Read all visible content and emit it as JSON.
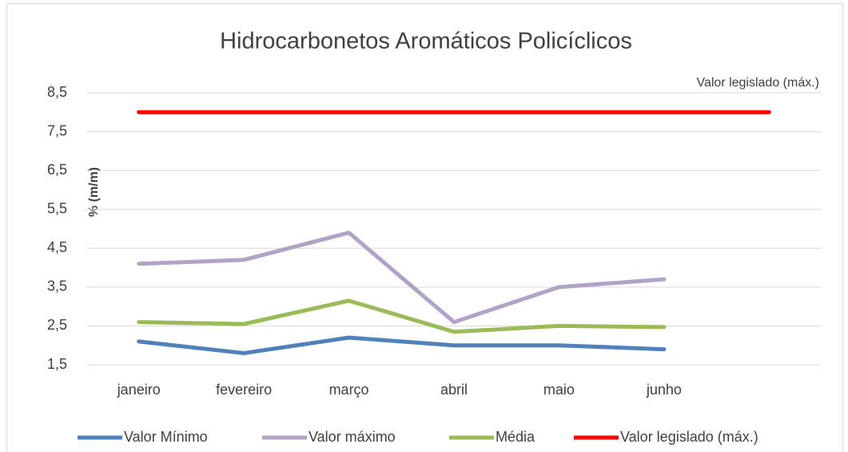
{
  "chart_data": {
    "type": "line",
    "title": "Hidrocarbonetos Aromáticos Policíclicos",
    "y_label": "% (m/m)",
    "annotation": "Valor legislado (máx.)",
    "categories": [
      "janeiro",
      "fevereiro",
      "março",
      "abril",
      "maio",
      "junho",
      null
    ],
    "series": [
      {
        "name": "Valor Mínimo",
        "color": "#4f81bd",
        "values": [
          2.1,
          1.8,
          2.2,
          2.0,
          2.0,
          1.9,
          null
        ]
      },
      {
        "name": "Valor máximo",
        "color": "#b3a2c7",
        "values": [
          4.1,
          4.2,
          4.9,
          2.6,
          3.5,
          3.7,
          null
        ]
      },
      {
        "name": "Média",
        "color": "#9bbb59",
        "values": [
          2.6,
          2.55,
          3.15,
          2.35,
          2.5,
          2.47,
          null
        ]
      },
      {
        "name": "Valor legislado (máx.)",
        "color": "#ff0000",
        "values": [
          8,
          8,
          8,
          8,
          8,
          8,
          8
        ]
      }
    ],
    "ylim": [
      1.5,
      8.5
    ],
    "yticks": [
      {
        "value": 1.5,
        "label": "1,5"
      },
      {
        "value": 2.5,
        "label": "2,5"
      },
      {
        "value": 3.5,
        "label": "3,5"
      },
      {
        "value": 4.5,
        "label": "4,5"
      },
      {
        "value": 5.5,
        "label": "5,5"
      },
      {
        "value": 6.5,
        "label": "6,5"
      },
      {
        "value": 7.5,
        "label": "7,5"
      },
      {
        "value": 8.5,
        "label": "8,5"
      }
    ],
    "grid": true,
    "legend": "bottom"
  }
}
